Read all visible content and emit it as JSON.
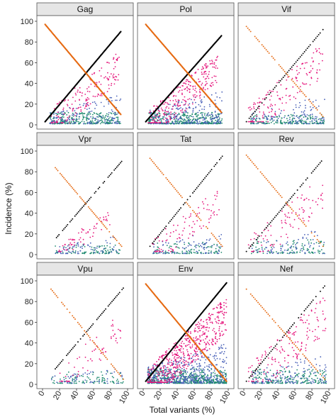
{
  "chart_data": {
    "type": "scatter",
    "xlabel": "Total variants (%)",
    "ylabel": "Incidence (%)",
    "xlim": [
      0,
      100
    ],
    "ylim": [
      0,
      100
    ],
    "x_ticks": [
      0,
      20,
      40,
      60,
      80,
      100
    ],
    "y_ticks": [
      0,
      20,
      40,
      60,
      80,
      100
    ],
    "grid": false,
    "colors": {
      "black_series": "#000000",
      "orange_series": "#e66a12",
      "magenta_series": "#e6197e",
      "blue_series": "#4a62b8",
      "teal_series": "#1f8a70"
    },
    "panels": [
      {
        "title": "Gag",
        "lines": [
          {
            "color": "black",
            "x_range": [
              3,
              92
            ],
            "y_start": 3,
            "y_end": 90,
            "style": "dense"
          },
          {
            "color": "orange",
            "x_range": [
              3,
              92
            ],
            "y_start": 97,
            "y_end": 10,
            "style": "dense"
          }
        ],
        "clouds": [
          {
            "color": "magenta",
            "x_range": [
              8,
              90
            ],
            "y_low": 2,
            "y_high": 70,
            "n": 160
          },
          {
            "color": "blue",
            "x_range": [
              8,
              92
            ],
            "y_low": 1,
            "y_high": 30,
            "n": 160
          },
          {
            "color": "teal",
            "x_range": [
              8,
              92
            ],
            "y_low": 1,
            "y_high": 12,
            "n": 260
          }
        ]
      },
      {
        "title": "Pol",
        "lines": [
          {
            "color": "black",
            "x_range": [
              3,
              92
            ],
            "y_start": 3,
            "y_end": 86,
            "style": "dense"
          },
          {
            "color": "orange",
            "x_range": [
              3,
              92
            ],
            "y_start": 97,
            "y_end": 12,
            "style": "dense"
          }
        ],
        "clouds": [
          {
            "color": "magenta",
            "x_range": [
              6,
              88
            ],
            "y_low": 2,
            "y_high": 68,
            "n": 260
          },
          {
            "color": "blue",
            "x_range": [
              8,
              93
            ],
            "y_low": 1,
            "y_high": 35,
            "n": 240
          },
          {
            "color": "teal",
            "x_range": [
              6,
              93
            ],
            "y_low": 1,
            "y_high": 12,
            "n": 340
          }
        ]
      },
      {
        "title": "Vif",
        "lines": [
          {
            "color": "black",
            "x_range": [
              3,
              93
            ],
            "y_start": 3,
            "y_end": 92,
            "style": "sparse"
          },
          {
            "color": "orange",
            "x_range": [
              3,
              93
            ],
            "y_start": 95,
            "y_end": 8,
            "style": "sparse"
          }
        ],
        "clouds": [
          {
            "color": "magenta",
            "x_range": [
              5,
              93
            ],
            "y_low": 3,
            "y_high": 78,
            "n": 150
          },
          {
            "color": "blue",
            "x_range": [
              8,
              95
            ],
            "y_low": 1,
            "y_high": 28,
            "n": 120
          },
          {
            "color": "teal",
            "x_range": [
              8,
              95
            ],
            "y_low": 1,
            "y_high": 10,
            "n": 180
          }
        ]
      },
      {
        "title": "Vpr",
        "lines": [
          {
            "color": "black",
            "x_range": [
              15,
              93
            ],
            "y_start": 15,
            "y_end": 90,
            "style": "sparse"
          },
          {
            "color": "orange",
            "x_range": [
              15,
              93
            ],
            "y_start": 84,
            "y_end": 8,
            "style": "sparse"
          }
        ],
        "clouds": [
          {
            "color": "magenta",
            "x_range": [
              18,
              80
            ],
            "y_low": 3,
            "y_high": 42,
            "n": 60
          },
          {
            "color": "blue",
            "x_range": [
              15,
              90
            ],
            "y_low": 1,
            "y_high": 18,
            "n": 70
          },
          {
            "color": "teal",
            "x_range": [
              15,
              92
            ],
            "y_low": 1,
            "y_high": 10,
            "n": 90
          }
        ]
      },
      {
        "title": "Tat",
        "lines": [
          {
            "color": "black",
            "x_range": [
              8,
              93
            ],
            "y_start": 8,
            "y_end": 95,
            "style": "sparse"
          },
          {
            "color": "orange",
            "x_range": [
              8,
              93
            ],
            "y_start": 93,
            "y_end": 8,
            "style": "sparse"
          }
        ],
        "clouds": [
          {
            "color": "magenta",
            "x_range": [
              10,
              90
            ],
            "y_low": 3,
            "y_high": 65,
            "n": 90
          },
          {
            "color": "blue",
            "x_range": [
              10,
              92
            ],
            "y_low": 1,
            "y_high": 25,
            "n": 80
          },
          {
            "color": "teal",
            "x_range": [
              10,
              92
            ],
            "y_low": 1,
            "y_high": 12,
            "n": 110
          }
        ]
      },
      {
        "title": "Rev",
        "lines": [
          {
            "color": "black",
            "x_range": [
              3,
              93
            ],
            "y_start": 3,
            "y_end": 92,
            "style": "sparse"
          },
          {
            "color": "orange",
            "x_range": [
              3,
              93
            ],
            "y_start": 96,
            "y_end": 8,
            "style": "sparse"
          }
        ],
        "clouds": [
          {
            "color": "magenta",
            "x_range": [
              5,
              95
            ],
            "y_low": 3,
            "y_high": 76,
            "n": 90
          },
          {
            "color": "blue",
            "x_range": [
              8,
              95
            ],
            "y_low": 1,
            "y_high": 25,
            "n": 70
          },
          {
            "color": "teal",
            "x_range": [
              8,
              95
            ],
            "y_low": 1,
            "y_high": 15,
            "n": 100
          }
        ]
      },
      {
        "title": "Vpu",
        "lines": [
          {
            "color": "black",
            "x_range": [
              15,
              95
            ],
            "y_start": 15,
            "y_end": 93,
            "style": "sparse"
          },
          {
            "color": "orange",
            "x_range": [
              10,
              95
            ],
            "y_start": 92,
            "y_end": 5,
            "style": "sparse"
          }
        ],
        "clouds": [
          {
            "color": "magenta",
            "x_range": [
              20,
              92
            ],
            "y_low": 3,
            "y_high": 70,
            "n": 60
          },
          {
            "color": "blue",
            "x_range": [
              10,
              95
            ],
            "y_low": 1,
            "y_high": 18,
            "n": 60
          },
          {
            "color": "teal",
            "x_range": [
              10,
              95
            ],
            "y_low": 1,
            "y_high": 12,
            "n": 90
          }
        ]
      },
      {
        "title": "Env",
        "lines": [
          {
            "color": "black",
            "x_range": [
              3,
              98
            ],
            "y_start": 3,
            "y_end": 98,
            "style": "dense"
          },
          {
            "color": "orange",
            "x_range": [
              3,
              98
            ],
            "y_start": 97,
            "y_end": 3,
            "style": "dense"
          }
        ],
        "clouds": [
          {
            "color": "magenta",
            "x_range": [
              5,
              98
            ],
            "y_low": 2,
            "y_high": 82,
            "n": 520
          },
          {
            "color": "blue",
            "x_range": [
              5,
              98
            ],
            "y_low": 1,
            "y_high": 40,
            "n": 420
          },
          {
            "color": "teal",
            "x_range": [
              5,
              98
            ],
            "y_low": 1,
            "y_high": 15,
            "n": 520
          }
        ]
      },
      {
        "title": "Nef",
        "lines": [
          {
            "color": "black",
            "x_range": [
              3,
              95
            ],
            "y_start": 3,
            "y_end": 95,
            "style": "sparse"
          },
          {
            "color": "orange",
            "x_range": [
              3,
              95
            ],
            "y_start": 92,
            "y_end": 5,
            "style": "sparse"
          }
        ],
        "clouds": [
          {
            "color": "magenta",
            "x_range": [
              5,
              97
            ],
            "y_low": 3,
            "y_high": 85,
            "n": 150
          },
          {
            "color": "blue",
            "x_range": [
              8,
              97
            ],
            "y_low": 1,
            "y_high": 30,
            "n": 130
          },
          {
            "color": "teal",
            "x_range": [
              8,
              97
            ],
            "y_low": 1,
            "y_high": 15,
            "n": 200
          }
        ]
      }
    ]
  }
}
